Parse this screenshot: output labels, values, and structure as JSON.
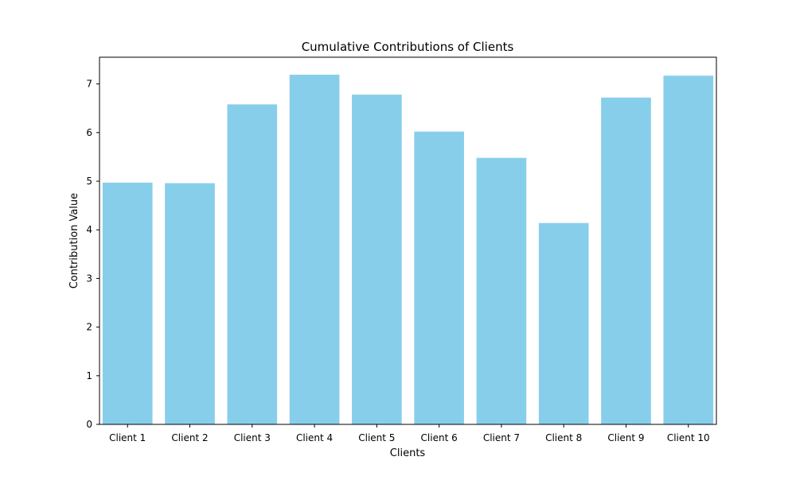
{
  "chart_data": {
    "type": "bar",
    "title": "Cumulative Contributions of Clients",
    "xlabel": "Clients",
    "ylabel": "Contribution Value",
    "categories": [
      "Client 1",
      "Client 2",
      "Client 3",
      "Client 4",
      "Client 5",
      "Client 6",
      "Client 7",
      "Client 8",
      "Client 9",
      "Client 10"
    ],
    "values": [
      4.97,
      4.96,
      6.58,
      7.19,
      6.78,
      6.02,
      5.48,
      4.14,
      6.72,
      7.17
    ],
    "ylim": [
      0,
      7.55
    ],
    "yticks": [
      0,
      1,
      2,
      3,
      4,
      5,
      6,
      7
    ],
    "bar_color": "#87ceeb",
    "grid": false,
    "legend": "none"
  }
}
